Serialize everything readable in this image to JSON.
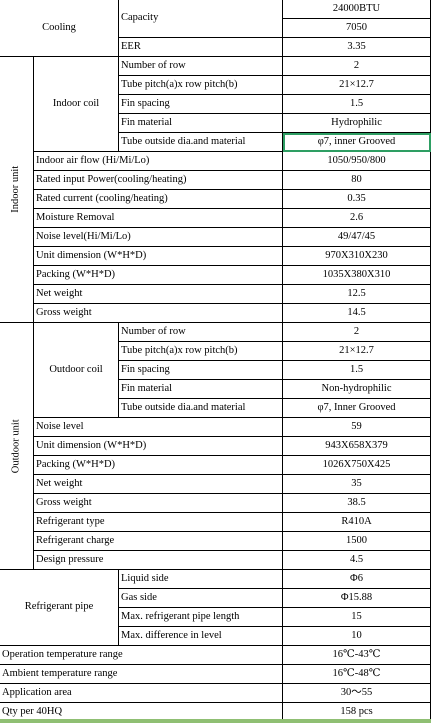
{
  "cooling": {
    "label": "Cooling",
    "capacity_label": "Capacity",
    "capacity_btu": "24000BTU",
    "capacity_w": "7050",
    "eer_label": "EER",
    "eer": "3.35"
  },
  "indoor_unit": {
    "section_label": "Indoor unit",
    "coil": {
      "label": "Indoor coil",
      "rows": [
        {
          "label": "Number of row",
          "value": "2"
        },
        {
          "label": "Tube pitch(a)x row pitch(b)",
          "value": "21×12.7"
        },
        {
          "label": "Fin spacing",
          "value": "1.5"
        },
        {
          "label": "Fin material",
          "value": "Hydrophilic"
        },
        {
          "label": "Tube outside dia.and material",
          "value": "φ7, inner Grooved"
        }
      ]
    },
    "rows": [
      {
        "label": "Indoor air flow (Hi/Mi/Lo)",
        "value": "1050/950/800"
      },
      {
        "label": "Rated input Power(cooling/heating)",
        "value": "80"
      },
      {
        "label": "Rated current  (cooling/heating)",
        "value": "0.35"
      },
      {
        "label": "Moisture Removal",
        "value": "2.6"
      },
      {
        "label": "Noise level(Hi/Mi/Lo)",
        "value": "49/47/45"
      },
      {
        "label": "Unit dimension (W*H*D)",
        "value": "970X310X230"
      },
      {
        "label": "Packing (W*H*D)",
        "value": "1035X380X310"
      },
      {
        "label": "Net weight",
        "value": "12.5"
      },
      {
        "label": "Gross weight",
        "value": "14.5"
      }
    ]
  },
  "outdoor_unit": {
    "section_label": "Outdoor unit",
    "coil": {
      "label": "Outdoor coil",
      "rows": [
        {
          "label": "Number of row",
          "value": "2"
        },
        {
          "label": "Tube pitch(a)x row pitch(b)",
          "value": "21×12.7"
        },
        {
          "label": "Fin spacing",
          "value": "1.5"
        },
        {
          "label": "Fin  material",
          "value": "Non-hydrophilic"
        },
        {
          "label": "Tube outside dia.and material",
          "value": "φ7, Inner Grooved"
        }
      ]
    },
    "rows": [
      {
        "label": "Noise level",
        "value": "59"
      },
      {
        "label": "Unit dimension (W*H*D)",
        "value": "943X658X379"
      },
      {
        "label": "Packing   (W*H*D)",
        "value": "1026X750X425"
      },
      {
        "label": "Net weight",
        "value": "35"
      },
      {
        "label": "Gross weight",
        "value": "38.5"
      },
      {
        "label": "Refrigerant type",
        "value": "R410A"
      },
      {
        "label": "Refrigerant charge",
        "value": "1500"
      },
      {
        "label": "Design pressure",
        "value": "4.5"
      }
    ]
  },
  "refrigerant_pipe": {
    "label": "Refrigerant pipe",
    "rows": [
      {
        "label": "Liquid side",
        "value": "Φ6"
      },
      {
        "label": "Gas side",
        "value": "Φ15.88"
      },
      {
        "label": "Max. refrigerant pipe length",
        "value": "15"
      },
      {
        "label": "Max. difference in level",
        "value": "10"
      }
    ]
  },
  "general": [
    {
      "label": "Operation temperature range",
      "value": "16℃-43℃"
    },
    {
      "label": "Ambient temperature range",
      "value": "16℃-48℃"
    },
    {
      "label": "Application area",
      "value": "30～55"
    },
    {
      "label": "Qty per 40HQ",
      "value": "158 pcs"
    }
  ],
  "colors": {
    "selection_border": "#2e9e63",
    "bottom_bar": "#8fbf73"
  }
}
